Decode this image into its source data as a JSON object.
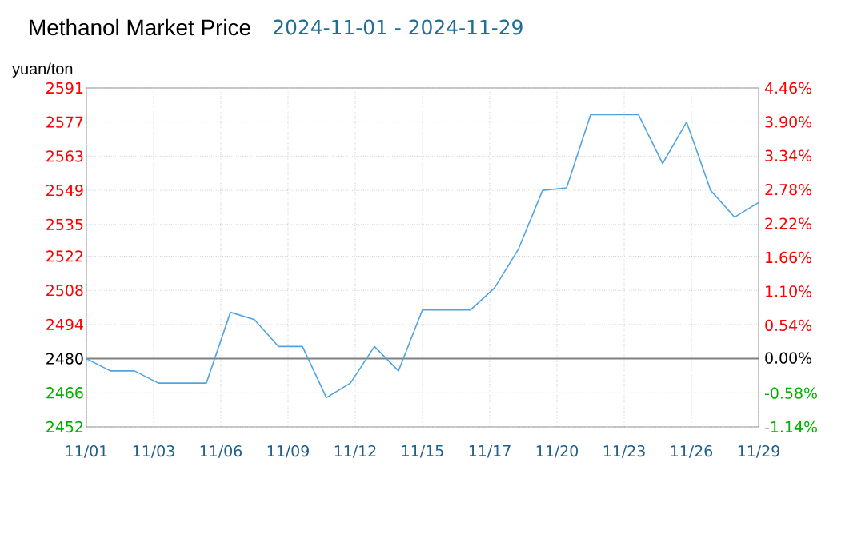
{
  "chart_data": {
    "type": "line",
    "title": "Methanol Market Price",
    "subtitle": "2024-11-01 - 2024-11-29",
    "ylabel": "yuan/ton",
    "x": [
      "2024-11-01",
      "2024-11-02",
      "2024-11-03",
      "2024-11-04",
      "2024-11-05",
      "2024-11-06",
      "2024-11-07",
      "2024-11-08",
      "2024-11-09",
      "2024-11-10",
      "2024-11-11",
      "2024-11-12",
      "2024-11-13",
      "2024-11-14",
      "2024-11-15",
      "2024-11-16",
      "2024-11-17",
      "2024-11-18",
      "2024-11-19",
      "2024-11-20",
      "2024-11-21",
      "2024-11-22",
      "2024-11-23",
      "2024-11-24",
      "2024-11-25",
      "2024-11-26",
      "2024-11-27",
      "2024-11-28",
      "2024-11-29"
    ],
    "series": [
      {
        "color": "#4fa3e0",
        "values": [
          2480,
          2475,
          2475,
          2470,
          2470,
          2470,
          2499,
          2496,
          2485,
          2485,
          2464,
          2470,
          2485,
          2475,
          2500,
          2500,
          2500,
          2509,
          2525,
          2549,
          2550,
          2580,
          2580,
          2580,
          2560,
          2577,
          2549,
          2538,
          2544
        ]
      }
    ],
    "xlim": [
      "2024-11-01",
      "2024-11-29"
    ],
    "xticks": [
      {
        "value": "2024-11-01",
        "label": "11/01"
      },
      {
        "value": "2024-11-03T19:12",
        "label": "11/03"
      },
      {
        "value": "2024-11-06T14:24",
        "label": "11/06"
      },
      {
        "value": "2024-11-09T09:36",
        "label": "11/09"
      },
      {
        "value": "2024-11-12T04:48",
        "label": "11/12"
      },
      {
        "value": "2024-11-15",
        "label": "11/15"
      },
      {
        "value": "2024-11-17T19:12",
        "label": "11/17"
      },
      {
        "value": "2024-11-20T14:24",
        "label": "11/20"
      },
      {
        "value": "2024-11-23T09:36",
        "label": "11/23"
      },
      {
        "value": "2024-11-26T04:48",
        "label": "11/26"
      },
      {
        "value": "2024-11-29",
        "label": "11/29"
      }
    ],
    "ylim": [
      2452,
      2591
    ],
    "yticks": [
      2452,
      2466,
      2480,
      2494,
      2508,
      2522,
      2535,
      2549,
      2563,
      2577,
      2591
    ],
    "y2lim": [
      -1.14,
      4.46
    ],
    "y2ticks": [
      {
        "value": -1.14,
        "label": "-1.14%"
      },
      {
        "value": -0.58,
        "label": "-0.58%"
      },
      {
        "value": 0,
        "label": "0.00%"
      },
      {
        "value": 0.54,
        "label": "0.54%"
      },
      {
        "value": 1.1,
        "label": "1.10%"
      },
      {
        "value": 1.66,
        "label": "1.66%"
      },
      {
        "value": 2.22,
        "label": "2.22%"
      },
      {
        "value": 2.78,
        "label": "2.78%"
      },
      {
        "value": 3.34,
        "label": "3.34%"
      },
      {
        "value": 3.9,
        "label": "3.90%"
      },
      {
        "value": 4.46,
        "label": "4.46%"
      }
    ],
    "ref_lines": [
      {
        "axis": "y",
        "value": 2480,
        "color": "#808080"
      }
    ],
    "grid": true,
    "marker": "none",
    "line_style": "solid"
  }
}
